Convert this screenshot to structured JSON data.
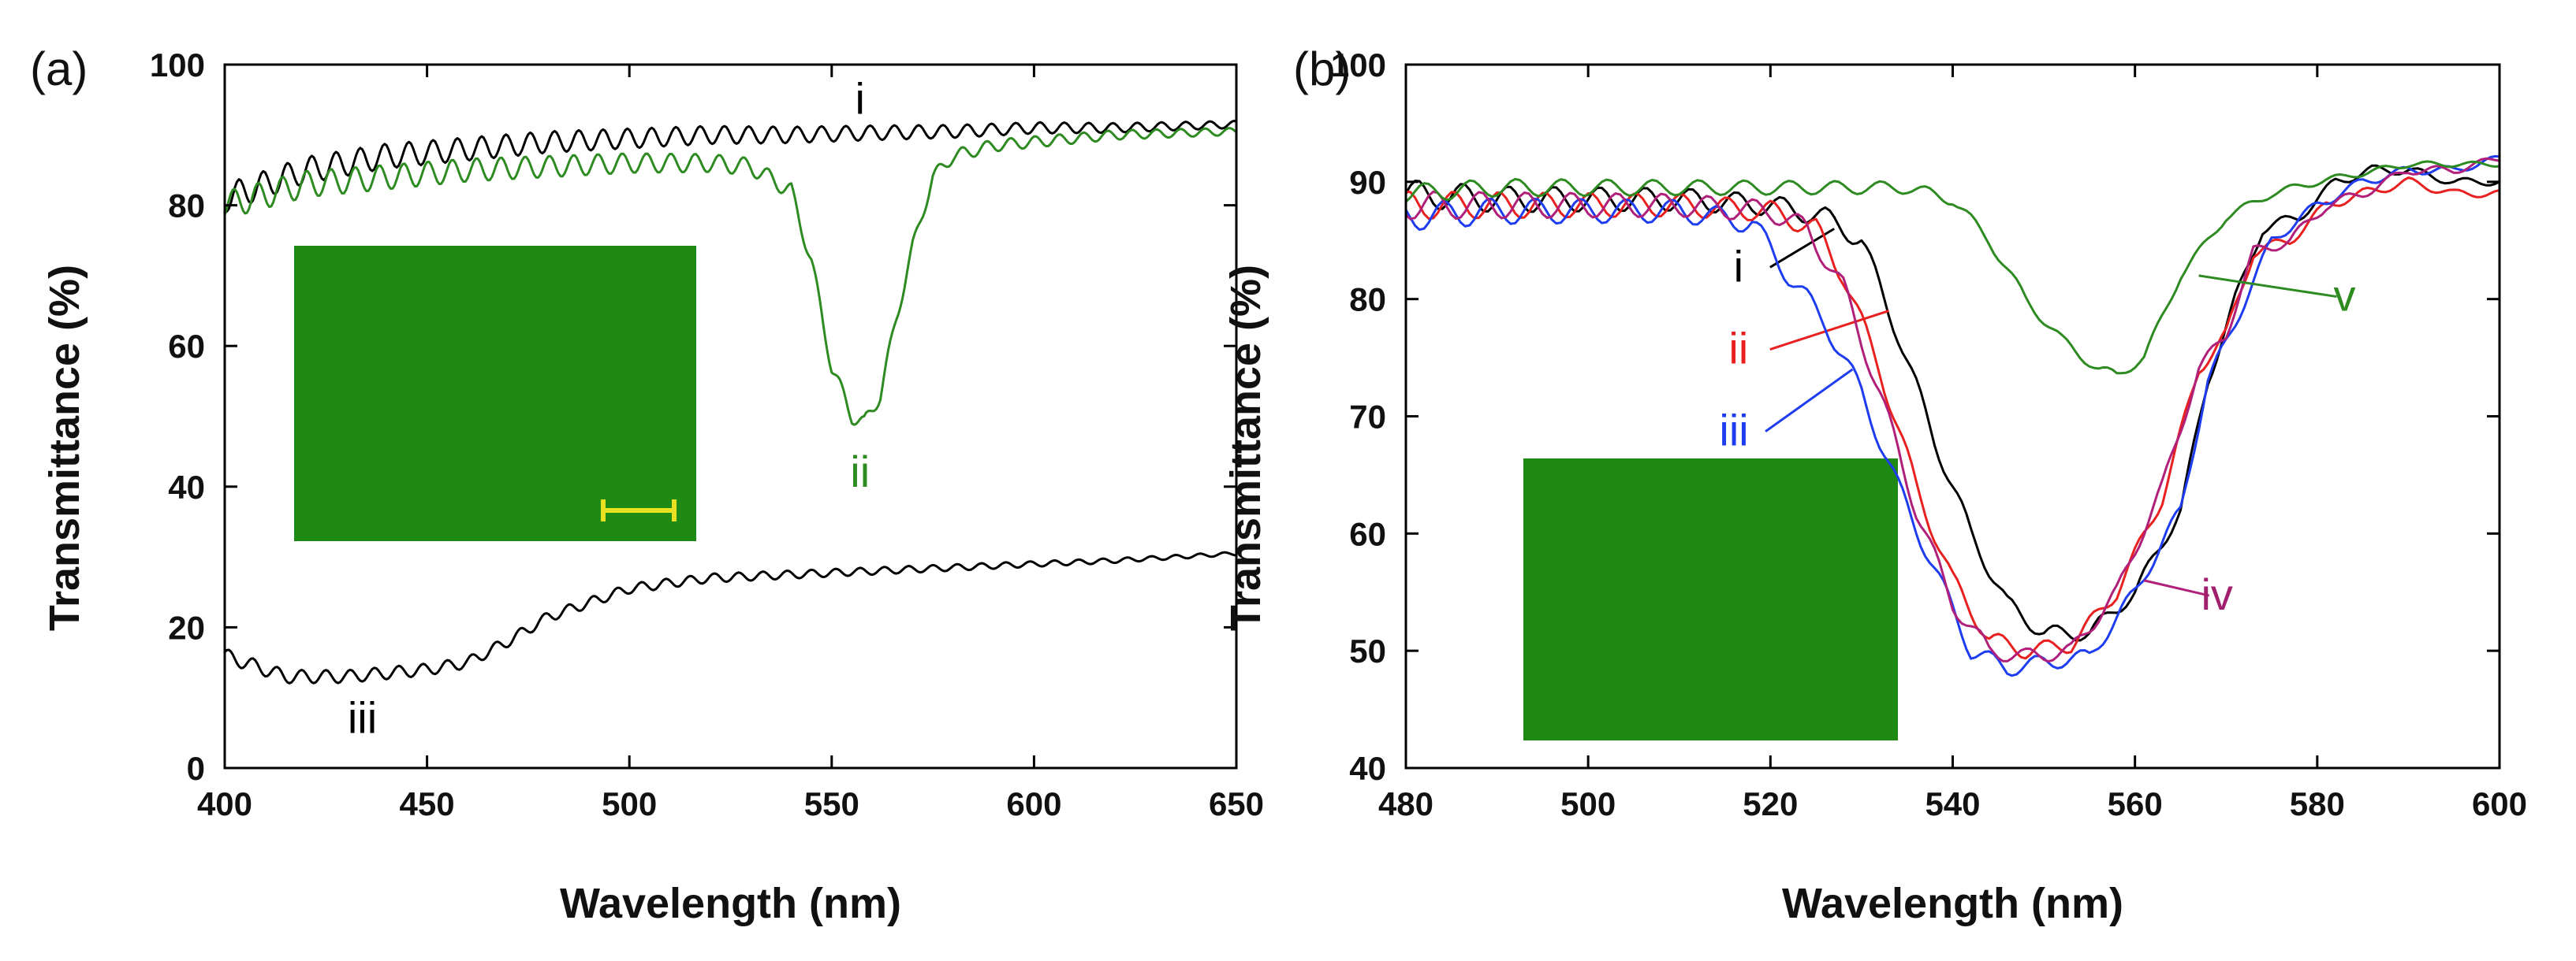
{
  "chart_data": [
    {
      "type": "line",
      "panel_label": "(a)",
      "xlabel": "Wavelength (nm)",
      "ylabel": "Transmittance (%)",
      "xlim": [
        400,
        650
      ],
      "ylim": [
        0,
        100
      ],
      "xticks": [
        400,
        450,
        500,
        550,
        600,
        650
      ],
      "yticks": [
        0,
        20,
        40,
        60,
        80,
        100
      ],
      "inset": {
        "content": "green micrograph",
        "color": "#1e8a14",
        "scale_bar_color": "#e8e020"
      },
      "series": [
        {
          "name": "i",
          "label": "i",
          "color": "#000000",
          "label_color": "#000000",
          "label_pos": [
            557,
            93
          ],
          "ripple": 2.0,
          "ripple_period": 6,
          "x": [
            400,
            420,
            440,
            460,
            480,
            500,
            520,
            540,
            560,
            580,
            600,
            620,
            650
          ],
          "y": [
            81,
            85,
            87,
            88,
            89,
            89.5,
            90,
            90,
            90.3,
            90.5,
            91,
            91,
            91.5
          ]
        },
        {
          "name": "ii",
          "label": "ii",
          "color": "#2e8b22",
          "label_color": "#2e8b22",
          "label_pos": [
            557,
            40
          ],
          "ripple": 2.0,
          "ripple_period": 6,
          "x": [
            400,
            420,
            440,
            460,
            480,
            500,
            520,
            530,
            540,
            545,
            550,
            555,
            558,
            562,
            566,
            570,
            575,
            580,
            590,
            600,
            620,
            650
          ],
          "y": [
            80,
            83,
            84,
            85,
            85.5,
            86,
            86,
            85.5,
            82,
            72,
            57,
            50,
            49,
            53,
            64,
            74,
            84,
            87,
            88.5,
            89,
            90,
            90.5
          ]
        },
        {
          "name": "iii",
          "label": "iii",
          "color": "#000000",
          "label_color": "#000000",
          "label_pos": [
            434,
            5
          ],
          "ripple": 1.0,
          "ripple_period": 6,
          "x": [
            400,
            415,
            430,
            450,
            460,
            470,
            480,
            490,
            500,
            510,
            520,
            540,
            560,
            580,
            600,
            620,
            650
          ],
          "y": [
            16,
            13,
            13,
            14,
            15,
            18,
            21.5,
            23.5,
            25.5,
            26.3,
            27,
            27.5,
            28,
            28.5,
            29,
            29.5,
            30.5
          ]
        }
      ]
    },
    {
      "type": "line",
      "panel_label": "(b)",
      "xlabel": "Wavelength (nm)",
      "ylabel": "Transmittance (%)",
      "xlim": [
        480,
        600
      ],
      "ylim": [
        40,
        100
      ],
      "xticks": [
        480,
        500,
        520,
        540,
        560,
        580,
        600
      ],
      "yticks": [
        40,
        50,
        60,
        70,
        80,
        90,
        100
      ],
      "inset": {
        "content": "green micrograph",
        "color": "#1e8a14"
      },
      "series": [
        {
          "name": "i",
          "label": "i",
          "color": "#000000",
          "label_color": "#000000",
          "label_pos": [
            516.5,
            81.5
          ],
          "pointer_to": [
            527,
            86
          ],
          "ripple": 1.2,
          "ripple_period": 5,
          "x": [
            480,
            490,
            500,
            510,
            520,
            526,
            530,
            534,
            538,
            542,
            546,
            550,
            555,
            560,
            565,
            568,
            571,
            574,
            578,
            582,
            586,
            590,
            595,
            600
          ],
          "y": [
            89,
            88.5,
            88.5,
            88.5,
            88,
            87,
            85,
            77,
            68,
            60,
            54,
            51.5,
            51.5,
            55,
            62,
            73,
            80,
            86,
            87,
            90,
            91,
            91,
            90,
            90
          ]
        },
        {
          "name": "ii",
          "label": "ii",
          "color": "#e82020",
          "label_color": "#e82020",
          "label_pos": [
            516.5,
            74.5
          ],
          "pointer_to": [
            533,
            79
          ],
          "ripple": 1.2,
          "ripple_period": 5,
          "x": [
            480,
            490,
            500,
            510,
            520,
            525,
            528,
            532,
            536,
            540,
            544,
            548,
            553,
            558,
            563,
            567,
            570,
            573,
            577,
            581,
            585,
            590,
            595,
            600
          ],
          "y": [
            88,
            88,
            88,
            88,
            87.5,
            86,
            82,
            74,
            64,
            56,
            51,
            50,
            50.5,
            55,
            63,
            74,
            77,
            84,
            85,
            88,
            89,
            90,
            89,
            89
          ]
        },
        {
          "name": "iii",
          "label": "iii",
          "color": "#1e3cf0",
          "label_color": "#1e3cf0",
          "label_pos": [
            516,
            67.5
          ],
          "pointer_to": [
            529,
            74
          ],
          "ripple": 1.2,
          "ripple_period": 5,
          "x": [
            480,
            490,
            500,
            510,
            518,
            522,
            526,
            530,
            534,
            538,
            542,
            546,
            550,
            555,
            560,
            565,
            568,
            571,
            575,
            580,
            585,
            590,
            595,
            600
          ],
          "y": [
            87,
            87.5,
            87.5,
            87.5,
            86.5,
            82,
            78,
            72,
            64,
            57,
            50,
            48.5,
            49,
            49.5,
            55,
            62,
            73,
            78,
            85,
            88,
            90,
            91,
            91,
            92
          ]
        },
        {
          "name": "iv",
          "label": "iv",
          "color": "#b0207a",
          "label_color": "#a0206e",
          "label_pos": [
            569,
            53.5
          ],
          "pointer_to": [
            561,
            56
          ],
          "ripple": 1.2,
          "ripple_period": 5,
          "x": [
            480,
            490,
            500,
            510,
            520,
            524,
            528,
            532,
            536,
            540,
            544,
            548,
            553,
            558,
            563,
            567,
            570,
            573,
            577,
            581,
            585,
            590,
            595,
            600
          ],
          "y": [
            88,
            88,
            88,
            88,
            87.5,
            86,
            81,
            72,
            62,
            54,
            50,
            49.5,
            50,
            55,
            64,
            74,
            77,
            84,
            85,
            88,
            89,
            91,
            91,
            92
          ]
        },
        {
          "name": "v",
          "label": "v",
          "color": "#2e8b22",
          "label_color": "#2e8b22",
          "label_pos": [
            583,
            79
          ],
          "pointer_to": [
            567,
            82
          ],
          "ripple": 0.8,
          "ripple_period": 5,
          "x": [
            480,
            490,
            500,
            510,
            520,
            530,
            535,
            540,
            544,
            548,
            552,
            556,
            558,
            561,
            565,
            570,
            575,
            580,
            590,
            600
          ],
          "y": [
            89,
            89.5,
            89.5,
            89.5,
            89.5,
            89.5,
            89.5,
            88.5,
            85,
            80,
            76.5,
            74,
            73.5,
            75,
            82,
            87,
            89,
            90,
            91.5,
            91.5
          ]
        }
      ]
    }
  ]
}
